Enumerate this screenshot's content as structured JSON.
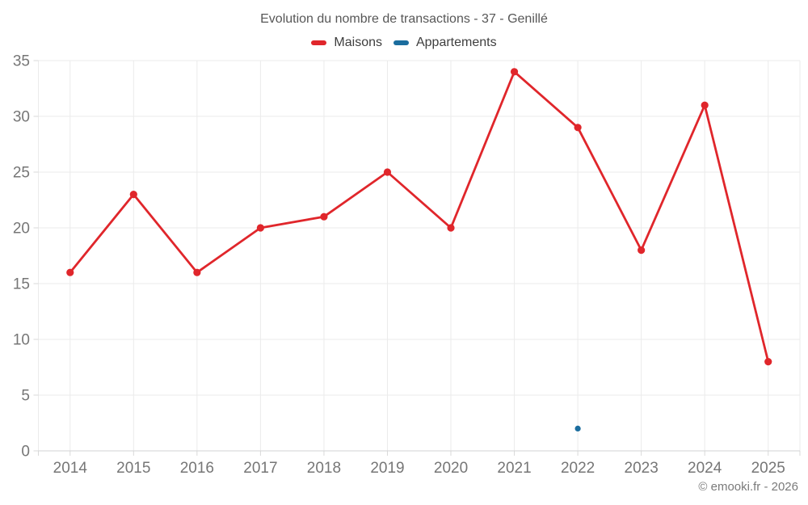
{
  "chart": {
    "title": "Evolution du nombre de transactions - 37 - Genillé",
    "footer": "© emooki.fr - 2026",
    "legend": [
      {
        "label": "Maisons",
        "color": "#e0262b"
      },
      {
        "label": "Appartements",
        "color": "#1b6d9e"
      }
    ]
  },
  "chart_data": {
    "type": "line",
    "title": "Evolution du nombre de transactions - 37 - Genillé",
    "categories": [
      "2014",
      "2015",
      "2016",
      "2017",
      "2018",
      "2019",
      "2020",
      "2021",
      "2022",
      "2023",
      "2024",
      "2025"
    ],
    "series": [
      {
        "name": "Maisons",
        "color": "#e0262b",
        "point_radius": 4.6,
        "values": [
          16,
          23,
          16,
          20,
          21,
          25,
          20,
          34,
          29,
          18,
          31,
          8
        ]
      },
      {
        "name": "Appartements",
        "color": "#1b6d9e",
        "point_radius": 3.6,
        "values": [
          null,
          null,
          null,
          null,
          null,
          null,
          null,
          null,
          2,
          null,
          null,
          null
        ]
      }
    ],
    "ylim": [
      0,
      35
    ],
    "ytick_step": 5,
    "grid": true,
    "legend_position": "top",
    "colors": {
      "grid_line": "#ebebeb",
      "axis_line": "#d2d3d4",
      "axis_tick": "#d9d9d9",
      "tick_text": "#767676",
      "title_text": "#575757",
      "legend_text": "#3e3e3e",
      "footer_text": "#7a7a7a"
    }
  }
}
